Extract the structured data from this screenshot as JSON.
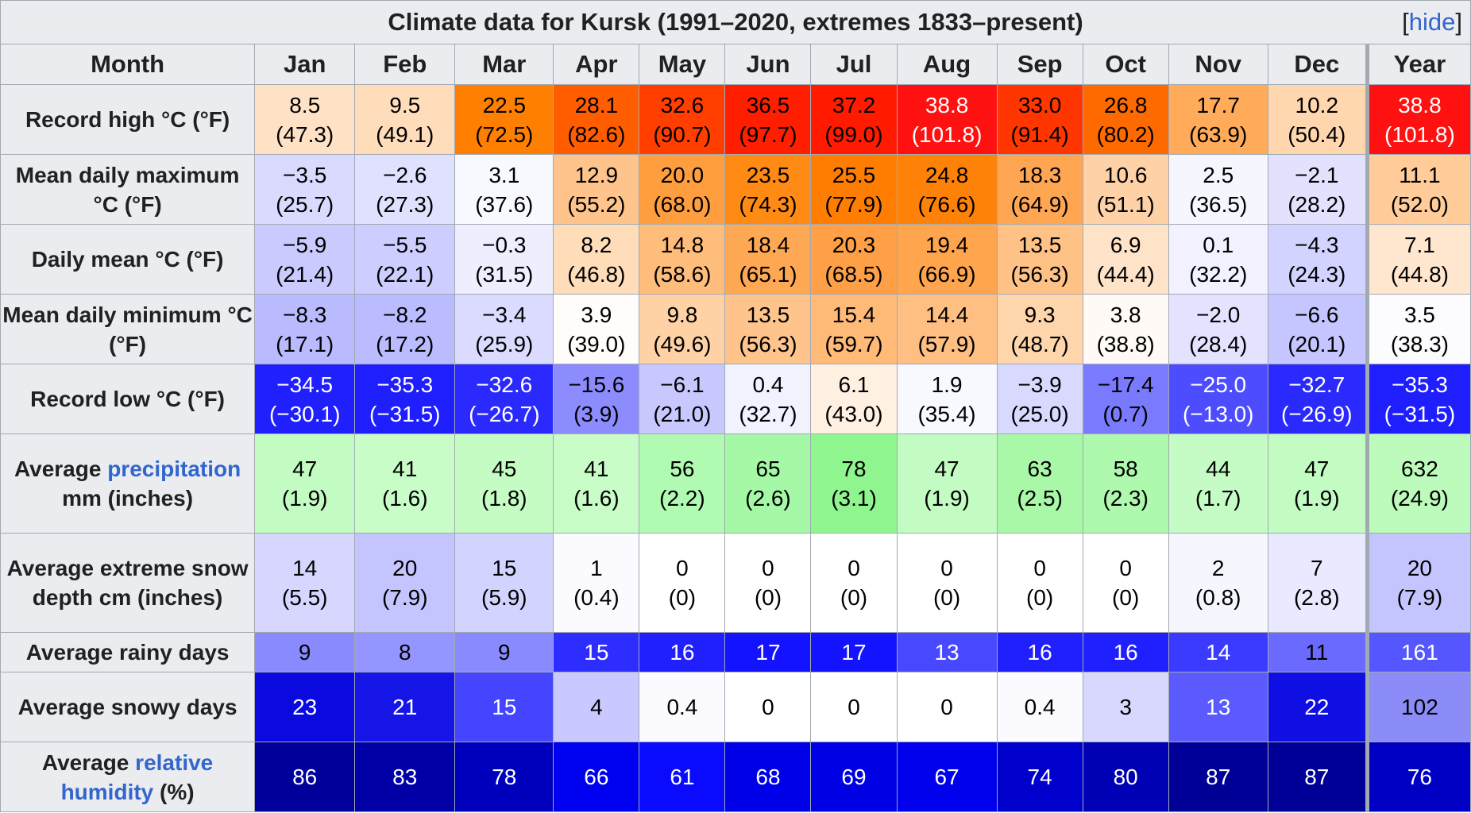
{
  "caption": {
    "title": "Climate data for Kursk (1991–2020, extremes 1833–present)",
    "hide_prefix": "[",
    "hide_label": "hide",
    "hide_suffix": "]"
  },
  "header": {
    "month_label": "Month",
    "months": [
      "Jan",
      "Feb",
      "Mar",
      "Apr",
      "May",
      "Jun",
      "Jul",
      "Aug",
      "Sep",
      "Oct",
      "Nov",
      "Dec"
    ],
    "year_label": "Year"
  },
  "rows": {
    "record_high": {
      "label": "Record high °C (°F)",
      "values": [
        "8.5\n(47.3)",
        "9.5\n(49.1)",
        "22.5\n(72.5)",
        "28.1\n(82.6)",
        "32.6\n(90.7)",
        "36.5\n(97.7)",
        "37.2\n(99.0)",
        "38.8\n(101.8)",
        "33.0\n(91.4)",
        "26.8\n(80.2)",
        "17.7\n(63.9)",
        "10.2\n(50.4)"
      ],
      "year": "38.8\n(101.8)",
      "bg": [
        "#FFE2C6",
        "#FFDCBA",
        "#FF8000",
        "#FF5D00",
        "#FF3E00",
        "#FF1E00",
        "#FF1A00",
        "#FF1111",
        "#FF3600",
        "#FF6A00",
        "#FFAB5A",
        "#FFD6AD"
      ],
      "year_bg": "#FF1111",
      "fg": [
        "#000000",
        "#000000",
        "#000000",
        "#000000",
        "#000000",
        "#000000",
        "#000000",
        "#ffffff",
        "#000000",
        "#000000",
        "#000000",
        "#000000"
      ],
      "year_fg": "#ffffff"
    },
    "mean_max": {
      "label": "Mean daily maximum °C (°F)",
      "values": [
        "−3.5\n(25.7)",
        "−2.6\n(27.3)",
        "3.1\n(37.6)",
        "12.9\n(55.2)",
        "20.0\n(68.0)",
        "23.5\n(74.3)",
        "25.5\n(77.9)",
        "24.8\n(76.6)",
        "18.3\n(64.9)",
        "10.6\n(51.1)",
        "2.5\n(36.5)",
        "−2.1\n(28.2)"
      ],
      "year": "11.1\n(52.0)",
      "bg": [
        "#DADAFF",
        "#E0E0FF",
        "#F8F8FF",
        "#FFC48C",
        "#FF9E3E",
        "#FF8A14",
        "#FF7E02",
        "#FF8208",
        "#FFA653",
        "#FFD1A6",
        "#F6F6FF",
        "#E2E2FF"
      ],
      "year_bg": "#FFCC9A",
      "fg": [
        "#000000",
        "#000000",
        "#000000",
        "#000000",
        "#000000",
        "#000000",
        "#000000",
        "#000000",
        "#000000",
        "#000000",
        "#000000",
        "#000000"
      ],
      "year_fg": "#000000"
    },
    "daily_mean": {
      "label": "Daily mean °C (°F)",
      "values": [
        "−5.9\n(21.4)",
        "−5.5\n(22.1)",
        "−0.3\n(31.5)",
        "8.2\n(46.8)",
        "14.8\n(58.6)",
        "18.4\n(65.1)",
        "20.3\n(68.5)",
        "19.4\n(66.9)",
        "13.5\n(56.3)",
        "6.9\n(44.4)",
        "0.1\n(32.2)",
        "−4.3\n(24.3)"
      ],
      "year": "7.1\n(44.8)",
      "bg": [
        "#CACAFF",
        "#CDCDFF",
        "#EEEEFF",
        "#FFDDB9",
        "#FFBD7C",
        "#FFA853",
        "#FFA046",
        "#FFA54E",
        "#FFC286",
        "#FFE3C8",
        "#F1F1FF",
        "#D3D3FF"
      ],
      "year_bg": "#FFE6CE",
      "fg": [
        "#000000",
        "#000000",
        "#000000",
        "#000000",
        "#000000",
        "#000000",
        "#000000",
        "#000000",
        "#000000",
        "#000000",
        "#000000",
        "#000000"
      ],
      "year_fg": "#000000"
    },
    "mean_min": {
      "label": "Mean daily minimum °C (°F)",
      "values": [
        "−8.3\n(17.1)",
        "−8.2\n(17.2)",
        "−3.4\n(25.9)",
        "3.9\n(39.0)",
        "9.8\n(49.6)",
        "13.5\n(56.3)",
        "15.4\n(59.7)",
        "14.4\n(57.9)",
        "9.3\n(48.7)",
        "3.8\n(38.8)",
        "−2.0\n(28.4)",
        "−6.6\n(20.1)"
      ],
      "year": "3.5\n(38.3)",
      "bg": [
        "#BABAFF",
        "#BBBBFF",
        "#DBDBFF",
        "#FFFCFA",
        "#FFD2A5",
        "#FFC48C",
        "#FFBA78",
        "#FFBF82",
        "#FFD5AB",
        "#FFFAF5",
        "#E3E3FF",
        "#C5C5FF"
      ],
      "year_bg": "#FCFCFF",
      "fg": [
        "#000000",
        "#000000",
        "#000000",
        "#000000",
        "#000000",
        "#000000",
        "#000000",
        "#000000",
        "#000000",
        "#000000",
        "#000000",
        "#000000"
      ],
      "year_fg": "#000000"
    },
    "record_low": {
      "label": "Record low °C (°F)",
      "values": [
        "−34.5\n(−30.1)",
        "−35.3\n(−31.5)",
        "−32.6\n(−26.7)",
        "−15.6\n(3.9)",
        "−6.1\n(21.0)",
        "0.4\n(32.7)",
        "6.1\n(43.0)",
        "1.9\n(35.4)",
        "−3.9\n(25.0)",
        "−17.4\n(0.7)",
        "−25.0\n(−13.0)",
        "−32.7\n(−26.9)"
      ],
      "year": "−35.3\n(−31.5)",
      "bg": [
        "#2020FF",
        "#1E1EFF",
        "#2A2AFF",
        "#8C8CFF",
        "#C8C8FF",
        "#F2F2FF",
        "#FFF0E2",
        "#F8F8FF",
        "#D9D9FF",
        "#7A7AFF",
        "#4D4DFF",
        "#2A2AFF"
      ],
      "year_bg": "#1E1EFF",
      "fg": [
        "#ffffff",
        "#ffffff",
        "#ffffff",
        "#000000",
        "#000000",
        "#000000",
        "#000000",
        "#000000",
        "#000000",
        "#000000",
        "#ffffff",
        "#ffffff"
      ],
      "year_fg": "#ffffff"
    },
    "precipitation": {
      "label_pre": "Average",
      "label_link": "precipitation",
      "label_post": "mm (inches)",
      "values": [
        "47\n(1.9)",
        "41\n(1.6)",
        "45\n(1.8)",
        "41\n(1.6)",
        "56\n(2.2)",
        "65\n(2.6)",
        "78\n(3.1)",
        "47\n(1.9)",
        "63\n(2.5)",
        "58\n(2.3)",
        "44\n(1.7)",
        "47\n(1.9)"
      ],
      "year": "632\n(24.9)",
      "bg": [
        "#C2FCC2",
        "#C8FDC8",
        "#C4FCC4",
        "#C8FDC8",
        "#B1FAB1",
        "#A5F8A5",
        "#8FF68F",
        "#C2FCC2",
        "#A8F8A8",
        "#AEF9AE",
        "#C5FCC5",
        "#C2FCC2"
      ],
      "year_bg": "#BCFBBC",
      "fg": [
        "#000000",
        "#000000",
        "#000000",
        "#000000",
        "#000000",
        "#000000",
        "#000000",
        "#000000",
        "#000000",
        "#000000",
        "#000000",
        "#000000"
      ],
      "year_fg": "#000000"
    },
    "snow_depth": {
      "label": "Average extreme snow depth cm (inches)",
      "values": [
        "14\n(5.5)",
        "20\n(7.9)",
        "15\n(5.9)",
        "1\n(0.4)",
        "0\n(0)",
        "0\n(0)",
        "0\n(0)",
        "0\n(0)",
        "0\n(0)",
        "0\n(0)",
        "2\n(0.8)",
        "7\n(2.8)"
      ],
      "year": "20\n(7.9)",
      "bg": [
        "#D6D6FF",
        "#C4C4FF",
        "#D3D3FF",
        "#FAFAFF",
        "#FFFFFF",
        "#FFFFFF",
        "#FFFFFF",
        "#FFFFFF",
        "#FFFFFF",
        "#FFFFFF",
        "#F6F6FF",
        "#E9E9FF"
      ],
      "year_bg": "#C4C4FF",
      "fg": [
        "#000000",
        "#000000",
        "#000000",
        "#000000",
        "#000000",
        "#000000",
        "#000000",
        "#000000",
        "#000000",
        "#000000",
        "#000000",
        "#000000"
      ],
      "year_fg": "#000000"
    },
    "rainy_days": {
      "label": "Average rainy days",
      "values": [
        "9",
        "8",
        "9",
        "15",
        "16",
        "17",
        "17",
        "13",
        "16",
        "16",
        "14",
        "11"
      ],
      "year": "161",
      "bg": [
        "#8A8AFF",
        "#9595FF",
        "#8A8AFF",
        "#2D2DFF",
        "#2020FF",
        "#1313FF",
        "#1313FF",
        "#4848FF",
        "#2020FF",
        "#2020FF",
        "#3B3BFF",
        "#6A6AFF"
      ],
      "year_bg": "#5656FF",
      "fg": [
        "#000000",
        "#000000",
        "#000000",
        "#ffffff",
        "#ffffff",
        "#ffffff",
        "#ffffff",
        "#ffffff",
        "#ffffff",
        "#ffffff",
        "#ffffff",
        "#000000"
      ],
      "year_fg": "#ffffff"
    },
    "snowy_days": {
      "label": "Average snowy days",
      "values": [
        "23",
        "21",
        "15",
        "4",
        "0.4",
        "0",
        "0",
        "0",
        "0.4",
        "3",
        "13",
        "22"
      ],
      "year": "102",
      "bg": [
        "#0A0AE0",
        "#1515E8",
        "#4545FF",
        "#C9C9FF",
        "#FAFAFF",
        "#FFFFFF",
        "#FFFFFF",
        "#FFFFFF",
        "#FAFAFF",
        "#D8D8FF",
        "#5A5AFF",
        "#0F0FE4"
      ],
      "year_bg": "#8C8CF8",
      "fg": [
        "#ffffff",
        "#ffffff",
        "#ffffff",
        "#000000",
        "#000000",
        "#000000",
        "#000000",
        "#000000",
        "#000000",
        "#000000",
        "#ffffff",
        "#ffffff"
      ],
      "year_fg": "#000000"
    },
    "humidity": {
      "label_pre": "Average",
      "label_link": "relative humidity",
      "label_post": "(%)",
      "values": [
        "86",
        "83",
        "78",
        "66",
        "61",
        "68",
        "69",
        "67",
        "74",
        "80",
        "87",
        "87"
      ],
      "year": "76",
      "bg": [
        "#00009A",
        "#0000A6",
        "#0000BC",
        "#0000F0",
        "#0A0AFF",
        "#0000E8",
        "#0000E4",
        "#0000EC",
        "#0000CD",
        "#0000B4",
        "#000096",
        "#000096"
      ],
      "year_bg": "#0000C4",
      "fg": [
        "#ffffff",
        "#ffffff",
        "#ffffff",
        "#ffffff",
        "#ffffff",
        "#ffffff",
        "#ffffff",
        "#ffffff",
        "#ffffff",
        "#ffffff",
        "#ffffff",
        "#ffffff"
      ],
      "year_fg": "#ffffff"
    }
  }
}
